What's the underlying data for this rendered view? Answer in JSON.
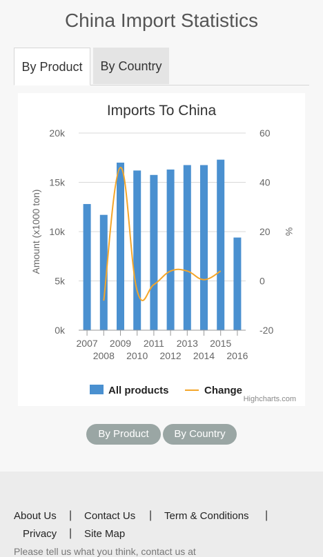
{
  "page": {
    "title": "China Import Statistics"
  },
  "tabs": [
    {
      "label": "By Product",
      "active": true
    },
    {
      "label": "By Country",
      "active": false
    }
  ],
  "chart_data": {
    "type": "bar",
    "title": "Imports To China",
    "x": [
      "2007",
      "2008",
      "2009",
      "2010",
      "2011",
      "2012",
      "2013",
      "2014",
      "2015",
      "2016"
    ],
    "ylabel": "Amount (x1000 ton)",
    "y2label": "%",
    "ylim": [
      0,
      20000
    ],
    "y2lim": [
      -20,
      60
    ],
    "yticks": [
      "0k",
      "5k",
      "10k",
      "15k",
      "20k"
    ],
    "y2ticks": [
      "-20",
      "0",
      "20",
      "40",
      "60"
    ],
    "series": [
      {
        "name": "All products",
        "type": "bar",
        "color": "#4a90d0",
        "values": [
          12800,
          11700,
          17000,
          16200,
          15750,
          16300,
          16750,
          16750,
          17300,
          9400
        ]
      },
      {
        "name": "Change",
        "type": "line",
        "color": "#f4a62a",
        "values": [
          null,
          -8,
          46,
          -4,
          -1.5,
          4,
          4,
          0.5,
          4,
          null
        ]
      }
    ],
    "legend_position": "bottom",
    "credits": "Highcharts.com"
  },
  "buttons": {
    "by_product": "By Product",
    "by_country": "By Country"
  },
  "footer": {
    "about": "About Us",
    "contact": "Contact Us",
    "terms": "Term & Conditions",
    "privacy": "Privacy",
    "sitemap": "Site Map",
    "separator": "|",
    "note": "Please tell us what you think, contact us at"
  }
}
